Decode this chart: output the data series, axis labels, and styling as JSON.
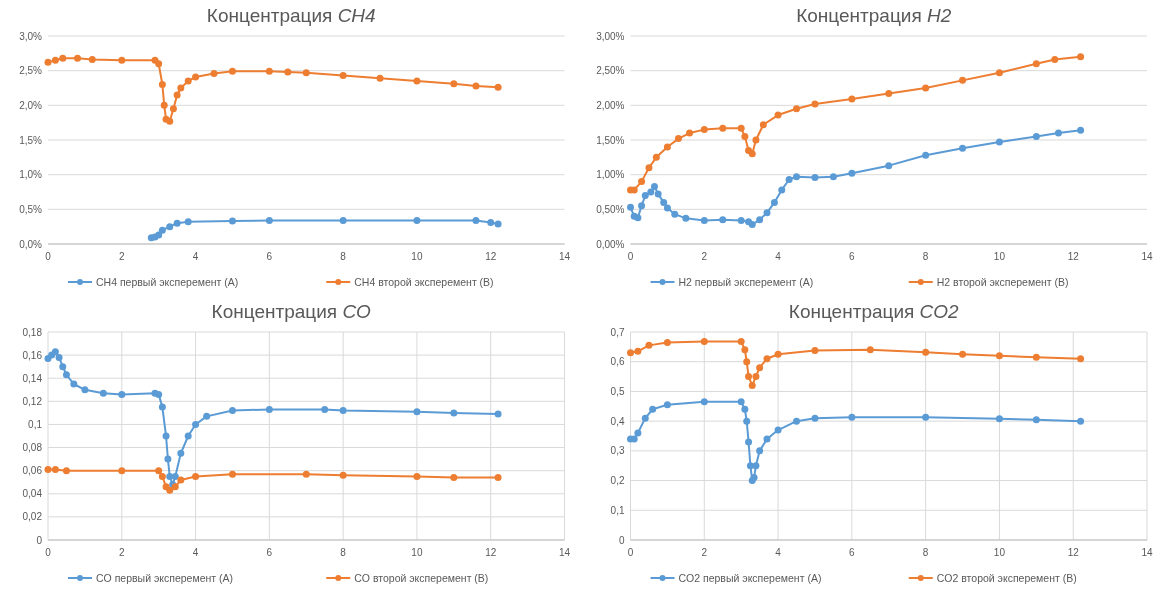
{
  "chart_data": [
    {
      "type": "line",
      "title": "Концентрация CH4",
      "marker": "circle",
      "grid": "y",
      "legend": "bottom",
      "xlim": [
        0,
        14
      ],
      "xticks": [
        0,
        2,
        4,
        6,
        8,
        10,
        12,
        14
      ],
      "ylim": [
        0,
        3
      ],
      "yticks": [
        {
          "value": 0,
          "label": "0,0%"
        },
        {
          "value": 0.5,
          "label": "0,5%"
        },
        {
          "value": 1,
          "label": "1,0%"
        },
        {
          "value": 1.5,
          "label": "1,5%"
        },
        {
          "value": 2,
          "label": "2,0%"
        },
        {
          "value": 2.5,
          "label": "2,5%"
        },
        {
          "value": 3,
          "label": "3,0%"
        }
      ],
      "series": [
        {
          "name": "CH4 первый эксперемент (A)",
          "color": "#5b9bd5",
          "x": [
            2.8,
            2.9,
            3.0,
            3.1,
            3.3,
            3.5,
            3.8,
            5,
            6,
            8,
            10,
            11.6,
            12,
            12.2
          ],
          "values": [
            0.09,
            0.1,
            0.13,
            0.2,
            0.25,
            0.3,
            0.32,
            0.33,
            0.34,
            0.34,
            0.34,
            0.34,
            0.31,
            0.29
          ]
        },
        {
          "name": "CH4 второй эксперемент (B)",
          "color": "#ed7d31",
          "x": [
            0,
            0.2,
            0.4,
            0.8,
            1.2,
            2,
            2.9,
            3.0,
            3.1,
            3.15,
            3.2,
            3.3,
            3.4,
            3.5,
            3.6,
            3.8,
            4,
            4.5,
            5,
            6,
            6.5,
            7,
            8,
            9,
            10,
            11,
            11.6,
            12.2
          ],
          "values": [
            2.62,
            2.65,
            2.68,
            2.68,
            2.66,
            2.65,
            2.65,
            2.6,
            2.3,
            2.0,
            1.8,
            1.77,
            1.95,
            2.15,
            2.25,
            2.35,
            2.41,
            2.46,
            2.49,
            2.49,
            2.48,
            2.47,
            2.43,
            2.39,
            2.35,
            2.31,
            2.28,
            2.26
          ]
        }
      ]
    },
    {
      "type": "line",
      "title": "Концентрация H2",
      "marker": "circle",
      "grid": "y",
      "legend": "bottom",
      "xlim": [
        0,
        14
      ],
      "xticks": [
        0,
        2,
        4,
        6,
        8,
        10,
        12,
        14
      ],
      "ylim": [
        0,
        3
      ],
      "yticks": [
        {
          "value": 0,
          "label": "0,00%"
        },
        {
          "value": 0.5,
          "label": "0,50%"
        },
        {
          "value": 1,
          "label": "1,00%"
        },
        {
          "value": 1.5,
          "label": "1,50%"
        },
        {
          "value": 2,
          "label": "2,00%"
        },
        {
          "value": 2.5,
          "label": "2,50%"
        },
        {
          "value": 3,
          "label": "3,00%"
        }
      ],
      "series": [
        {
          "name": "H2 первый эксперемент (A)",
          "color": "#5b9bd5",
          "x": [
            0,
            0.1,
            0.2,
            0.3,
            0.4,
            0.55,
            0.65,
            0.75,
            0.9,
            1.0,
            1.2,
            1.5,
            2,
            2.5,
            3,
            3.2,
            3.3,
            3.5,
            3.7,
            3.9,
            4.1,
            4.3,
            4.5,
            5,
            5.5,
            6,
            7,
            8,
            9,
            10,
            11,
            11.6,
            12.2
          ],
          "values": [
            0.53,
            0.4,
            0.38,
            0.55,
            0.7,
            0.75,
            0.83,
            0.72,
            0.6,
            0.52,
            0.43,
            0.37,
            0.34,
            0.35,
            0.34,
            0.32,
            0.28,
            0.35,
            0.45,
            0.6,
            0.78,
            0.93,
            0.97,
            0.96,
            0.97,
            1.02,
            1.13,
            1.28,
            1.38,
            1.47,
            1.55,
            1.6,
            1.64
          ]
        },
        {
          "name": "H2 второй эксперемент (B)",
          "color": "#ed7d31",
          "x": [
            0,
            0.1,
            0.3,
            0.5,
            0.7,
            1,
            1.3,
            1.6,
            2,
            2.5,
            3.0,
            3.1,
            3.2,
            3.3,
            3.4,
            3.6,
            4,
            4.5,
            5,
            6,
            7,
            8,
            9,
            10,
            11,
            11.5,
            12.2
          ],
          "values": [
            0.78,
            0.78,
            0.9,
            1.1,
            1.25,
            1.4,
            1.52,
            1.6,
            1.65,
            1.67,
            1.67,
            1.55,
            1.35,
            1.3,
            1.5,
            1.72,
            1.86,
            1.95,
            2.02,
            2.09,
            2.17,
            2.25,
            2.36,
            2.47,
            2.6,
            2.66,
            2.7
          ]
        }
      ]
    },
    {
      "type": "line",
      "title": "Концентрация CO",
      "marker": "circle",
      "grid": true,
      "legend": "bottom",
      "xlim": [
        0,
        14
      ],
      "xticks": [
        0,
        2,
        4,
        6,
        8,
        10,
        12,
        14
      ],
      "ylim": [
        0,
        0.18
      ],
      "yticks": [
        0,
        {
          "value": 0.02,
          "label": "0,02"
        },
        {
          "value": 0.04,
          "label": "0,04"
        },
        {
          "value": 0.06,
          "label": "0,06"
        },
        {
          "value": 0.08,
          "label": "0,08"
        },
        {
          "value": 0.1,
          "label": "0,1"
        },
        {
          "value": 0.12,
          "label": "0,12"
        },
        {
          "value": 0.14,
          "label": "0,14"
        },
        {
          "value": 0.16,
          "label": "0,16"
        },
        {
          "value": 0.18,
          "label": "0,18"
        }
      ],
      "series": [
        {
          "name": "CO первый эксперемент (A)",
          "color": "#5b9bd5",
          "x": [
            0,
            0.1,
            0.2,
            0.3,
            0.4,
            0.5,
            0.7,
            1,
            1.5,
            2,
            2.9,
            3.0,
            3.1,
            3.2,
            3.25,
            3.3,
            3.38,
            3.45,
            3.6,
            3.8,
            4,
            4.3,
            5,
            6,
            7.5,
            8,
            10,
            11,
            12.2
          ],
          "values": [
            0.157,
            0.16,
            0.163,
            0.158,
            0.15,
            0.143,
            0.135,
            0.13,
            0.127,
            0.126,
            0.127,
            0.126,
            0.115,
            0.09,
            0.07,
            0.055,
            0.048,
            0.055,
            0.075,
            0.09,
            0.1,
            0.107,
            0.112,
            0.113,
            0.113,
            0.112,
            0.111,
            0.11,
            0.109
          ]
        },
        {
          "name": "CO второй эксперемент (B)",
          "color": "#ed7d31",
          "x": [
            0,
            0.2,
            0.5,
            2,
            3,
            3.1,
            3.2,
            3.3,
            3.45,
            3.6,
            4,
            5,
            7,
            8,
            10,
            11,
            12.2
          ],
          "values": [
            0.061,
            0.061,
            0.06,
            0.06,
            0.06,
            0.055,
            0.046,
            0.043,
            0.046,
            0.052,
            0.055,
            0.057,
            0.057,
            0.056,
            0.055,
            0.054,
            0.054
          ]
        }
      ]
    },
    {
      "type": "line",
      "title": "Концентрация CO2",
      "marker": "circle",
      "grid": true,
      "legend": "bottom",
      "xlim": [
        0,
        14
      ],
      "xticks": [
        0,
        2,
        4,
        6,
        8,
        10,
        12,
        14
      ],
      "ylim": [
        0,
        0.7
      ],
      "yticks": [
        0,
        {
          "value": 0.1,
          "label": "0,1"
        },
        {
          "value": 0.2,
          "label": "0,2"
        },
        {
          "value": 0.3,
          "label": "0,3"
        },
        {
          "value": 0.4,
          "label": "0,4"
        },
        {
          "value": 0.5,
          "label": "0,5"
        },
        {
          "value": 0.6,
          "label": "0,6"
        },
        {
          "value": 0.7,
          "label": "0,7"
        }
      ],
      "series": [
        {
          "name": "CO2 первый эксперемент (A)",
          "color": "#5b9bd5",
          "x": [
            0,
            0.1,
            0.2,
            0.4,
            0.6,
            1,
            2,
            3,
            3.1,
            3.15,
            3.2,
            3.25,
            3.3,
            3.35,
            3.4,
            3.5,
            3.7,
            4,
            4.5,
            5,
            6,
            8,
            10,
            11,
            12.2
          ],
          "values": [
            0.34,
            0.34,
            0.36,
            0.41,
            0.44,
            0.455,
            0.465,
            0.465,
            0.44,
            0.4,
            0.33,
            0.25,
            0.2,
            0.21,
            0.25,
            0.3,
            0.34,
            0.37,
            0.4,
            0.41,
            0.413,
            0.413,
            0.408,
            0.405,
            0.4
          ]
        },
        {
          "name": "CO2 второй эксперемент (B)",
          "color": "#ed7d31",
          "x": [
            0,
            0.2,
            0.5,
            1,
            2,
            3,
            3.1,
            3.15,
            3.2,
            3.3,
            3.4,
            3.5,
            3.7,
            4,
            5,
            6.5,
            8,
            9,
            10,
            11,
            12.2
          ],
          "values": [
            0.63,
            0.635,
            0.655,
            0.665,
            0.668,
            0.668,
            0.64,
            0.6,
            0.55,
            0.52,
            0.55,
            0.58,
            0.61,
            0.625,
            0.638,
            0.64,
            0.632,
            0.625,
            0.62,
            0.615,
            0.61
          ]
        }
      ]
    }
  ]
}
